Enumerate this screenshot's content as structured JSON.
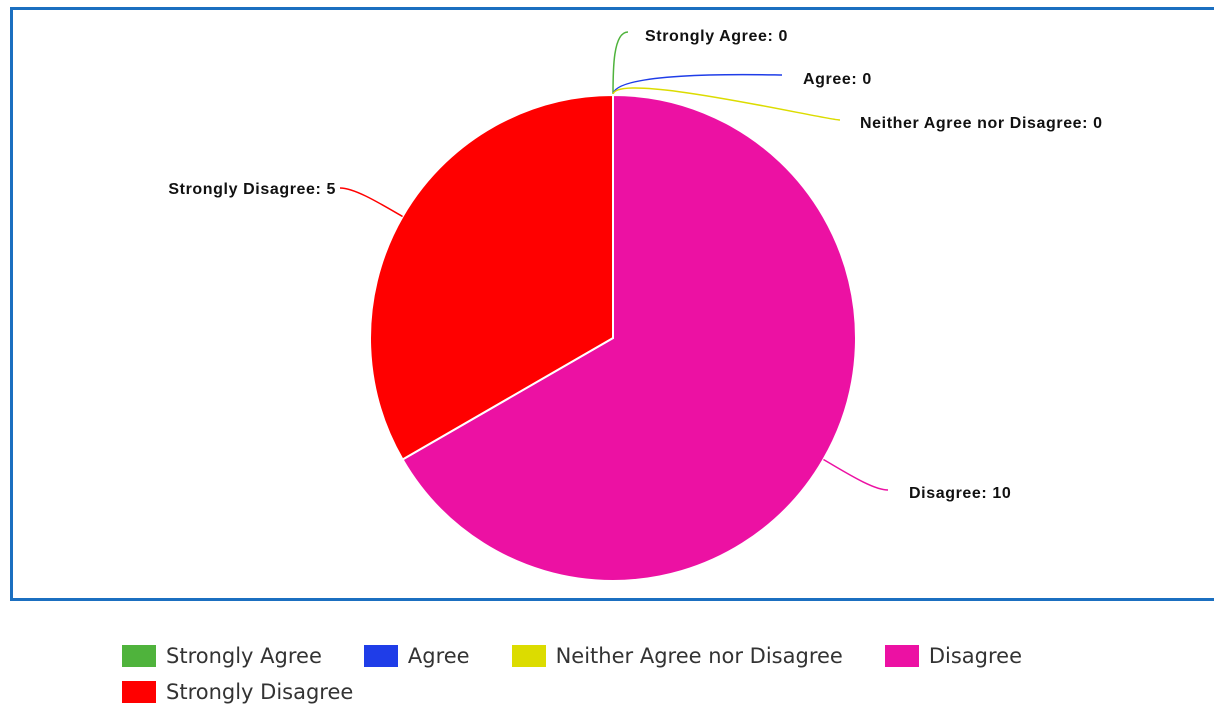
{
  "chart_data": {
    "type": "pie",
    "categories": [
      "Strongly Agree",
      "Agree",
      "Neither Agree nor Disagree",
      "Disagree",
      "Strongly Disagree"
    ],
    "values": [
      0,
      0,
      0,
      10,
      5
    ],
    "value_labels": [
      "Strongly Agree: 0",
      "Agree: 0",
      "Neither Agree nor Disagree: 0",
      "Disagree: 10",
      "Strongly Disagree: 5"
    ],
    "colors": [
      "#4fb33c",
      "#1f3de8",
      "#dcdc00",
      "#ec11a3",
      "#ff0000"
    ],
    "legend": "bottom"
  }
}
